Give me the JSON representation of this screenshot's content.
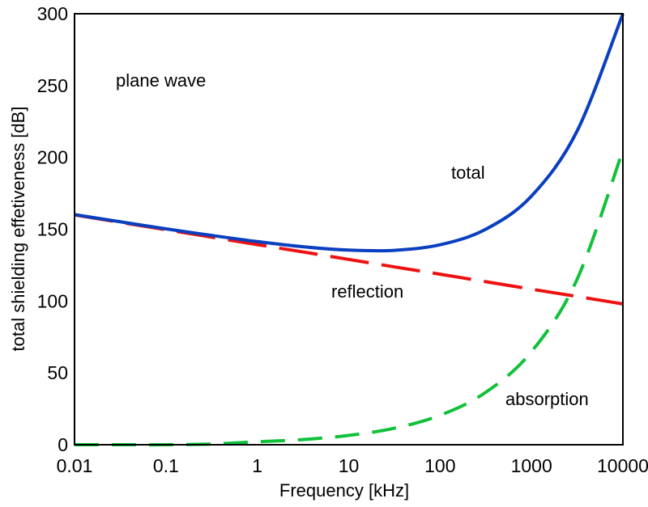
{
  "chart_data": {
    "type": "line",
    "title": "",
    "xlabel": "Frequency [kHz]",
    "ylabel": "total shielding effetiveness [dB]",
    "xscale": "log",
    "xlim": [
      0.01,
      10000
    ],
    "ylim": [
      0,
      300
    ],
    "xticks": [
      "0.01",
      "0.1",
      "1",
      "10",
      "100",
      "1000",
      "10000"
    ],
    "xtick_values": [
      0.01,
      0.1,
      1,
      10,
      100,
      1000,
      10000
    ],
    "yticks": [
      "0",
      "50",
      "100",
      "150",
      "200",
      "250",
      "300"
    ],
    "ytick_values": [
      0,
      50,
      100,
      150,
      200,
      250,
      300
    ],
    "grid": false,
    "x": [
      0.01,
      0.0316,
      0.1,
      0.316,
      1,
      3.16,
      10,
      31.6,
      100,
      316,
      1000,
      3162,
      10000
    ],
    "series": [
      {
        "name": "total",
        "style": "solid",
        "color": "#0a3fbf",
        "values": [
          160.2,
          155.2,
          150.3,
          145.7,
          141.4,
          137.8,
          135.5,
          135.3,
          139.2,
          150.0,
          173.1,
          218.5,
          300
        ]
      },
      {
        "name": "reflection",
        "style": "dashed",
        "color": "#ee1111",
        "values": [
          160,
          154.8,
          149.7,
          144.5,
          139.3,
          134.2,
          129,
          123.8,
          118.7,
          113.5,
          108.3,
          103.2,
          98
        ]
      },
      {
        "name": "absorption",
        "style": "dashed",
        "color": "#11c13a",
        "values": [
          0,
          0,
          0,
          0.5,
          2.1,
          3.6,
          6.5,
          11.5,
          20.5,
          36.5,
          64.8,
          115.3,
          205
        ]
      }
    ],
    "annotations": [
      {
        "text": "plane wave"
      },
      {
        "text": "total"
      },
      {
        "text": "reflection"
      },
      {
        "text": "absorption"
      }
    ]
  }
}
